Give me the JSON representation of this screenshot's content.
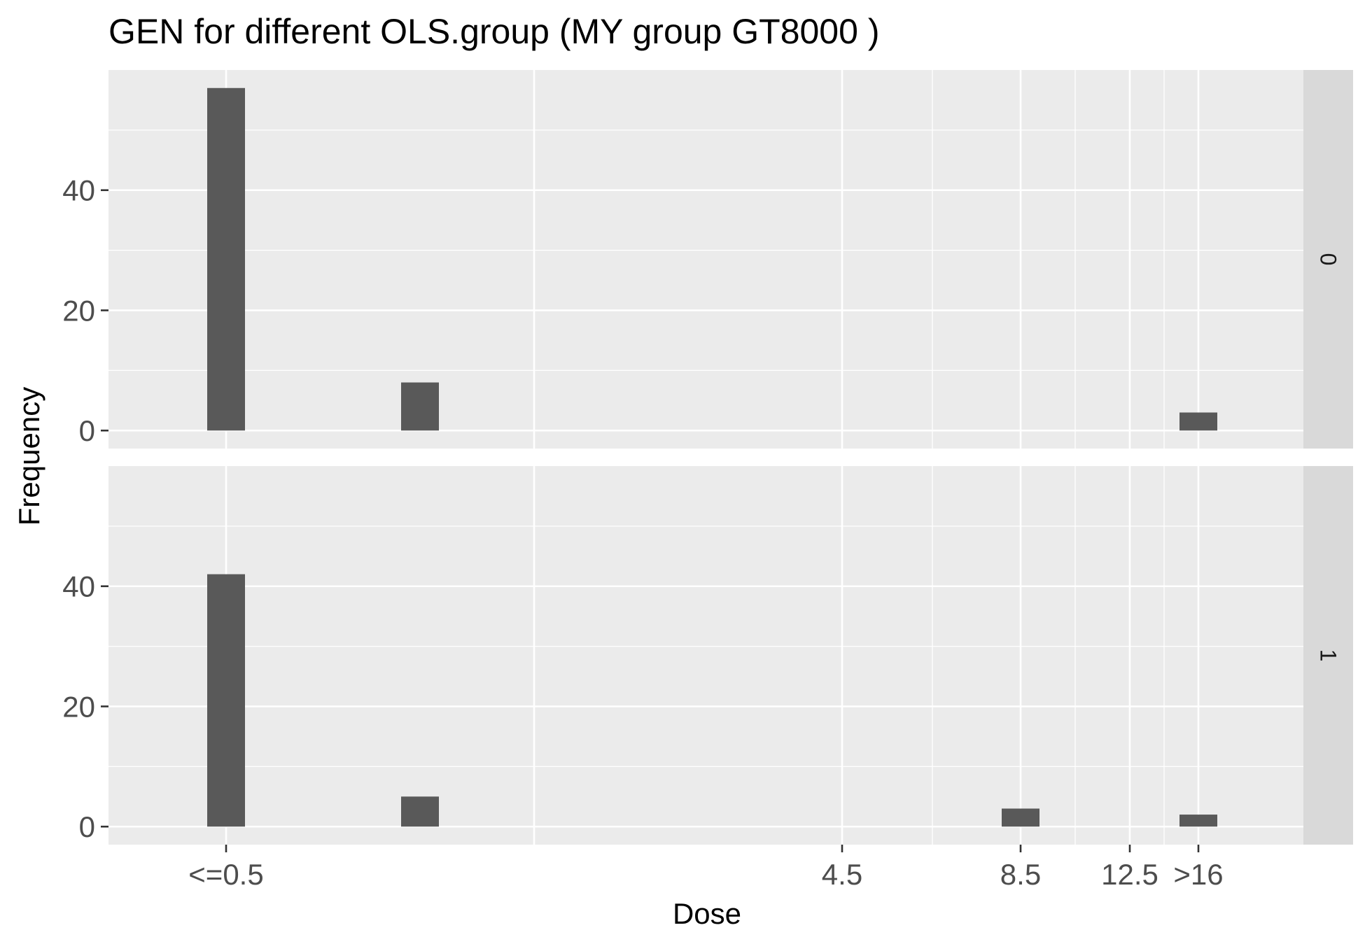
{
  "chart_data": {
    "type": "bar",
    "title": "GEN for different OLS.group     (MY group GT8000 )",
    "xlabel": "Dose",
    "ylabel": "Frequency",
    "x_tick_labels": [
      "<=0.5",
      "4.5",
      "8.5",
      "12.5",
      ">16"
    ],
    "y_ticks": [
      0,
      20,
      40
    ],
    "ylim": [
      -3,
      60
    ],
    "grid": true,
    "facets": [
      {
        "strip": "0",
        "bars": [
          {
            "x": "<=0.5",
            "value": 57
          },
          {
            "x": "1",
            "value": 8
          },
          {
            "x": ">16",
            "value": 3
          }
        ]
      },
      {
        "strip": "1",
        "bars": [
          {
            "x": "<=0.5",
            "value": 42
          },
          {
            "x": "1",
            "value": 5
          },
          {
            "x": "8.5",
            "value": 3
          },
          {
            "x": ">16",
            "value": 2
          }
        ]
      }
    ],
    "colors": {
      "panel_bg": "#ebebeb",
      "grid_major": "#ffffff",
      "bar": "#595959",
      "strip_bg": "#d9d9d9",
      "tick": "#333333"
    }
  }
}
